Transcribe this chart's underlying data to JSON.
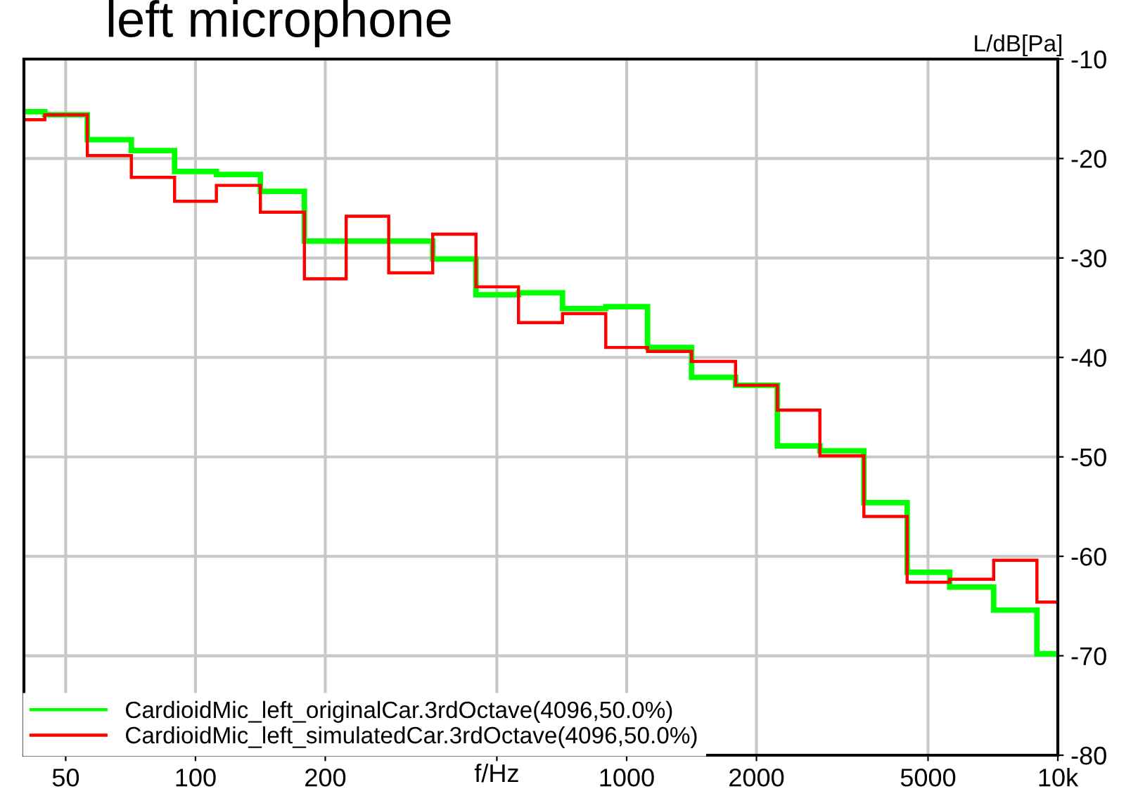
{
  "chart_data": {
    "type": "step",
    "title": "left microphone",
    "xlabel": "f/Hz",
    "ylabel": "L/dB[Pa]",
    "x": [
      40,
      50,
      63,
      80,
      100,
      125,
      160,
      200,
      250,
      315,
      400,
      500,
      630,
      800,
      1000,
      1250,
      1600,
      2000,
      2500,
      3150,
      4000,
      5000,
      6300,
      8000,
      10000
    ],
    "series": [
      {
        "name": "CardioidMic_left_originalCar.3rdOctave(4096,50.0%)",
        "color": "#00ff00",
        "values": [
          -15.3,
          -15.6,
          -18.1,
          -19.2,
          -21.3,
          -21.6,
          -23.3,
          -28.3,
          -28.3,
          -28.3,
          -30.1,
          -33.7,
          -33.5,
          -35.1,
          -34.9,
          -39.0,
          -42.0,
          -42.8,
          -48.9,
          -49.4,
          -54.6,
          -61.6,
          -63.1,
          -65.4,
          -69.8
        ]
      },
      {
        "name": "CardioidMic_left_simulatedCar.3rdOctave(4096,50.0%)",
        "color": "#ff0000",
        "values": [
          -16.1,
          -15.6,
          -19.7,
          -21.9,
          -24.3,
          -22.7,
          -25.4,
          -32.1,
          -25.8,
          -31.5,
          -27.6,
          -32.9,
          -36.5,
          -35.6,
          -39.0,
          -39.4,
          -40.4,
          -42.8,
          -45.3,
          -49.9,
          -56.0,
          -62.6,
          -62.3,
          -60.4,
          -64.6
        ]
      }
    ],
    "log": "x",
    "xlim": [
      40,
      10000
    ],
    "xticks": [
      50,
      100,
      200,
      {
        "value": 500,
        "label": null
      },
      1000,
      2000,
      5000,
      {
        "value": 10000,
        "label": "10k"
      }
    ],
    "ylim": [
      -80,
      -10
    ],
    "yticks": [
      -10,
      -20,
      -30,
      -40,
      -50,
      -60,
      -70,
      -80
    ],
    "grid": true,
    "legend": "bottom left"
  }
}
